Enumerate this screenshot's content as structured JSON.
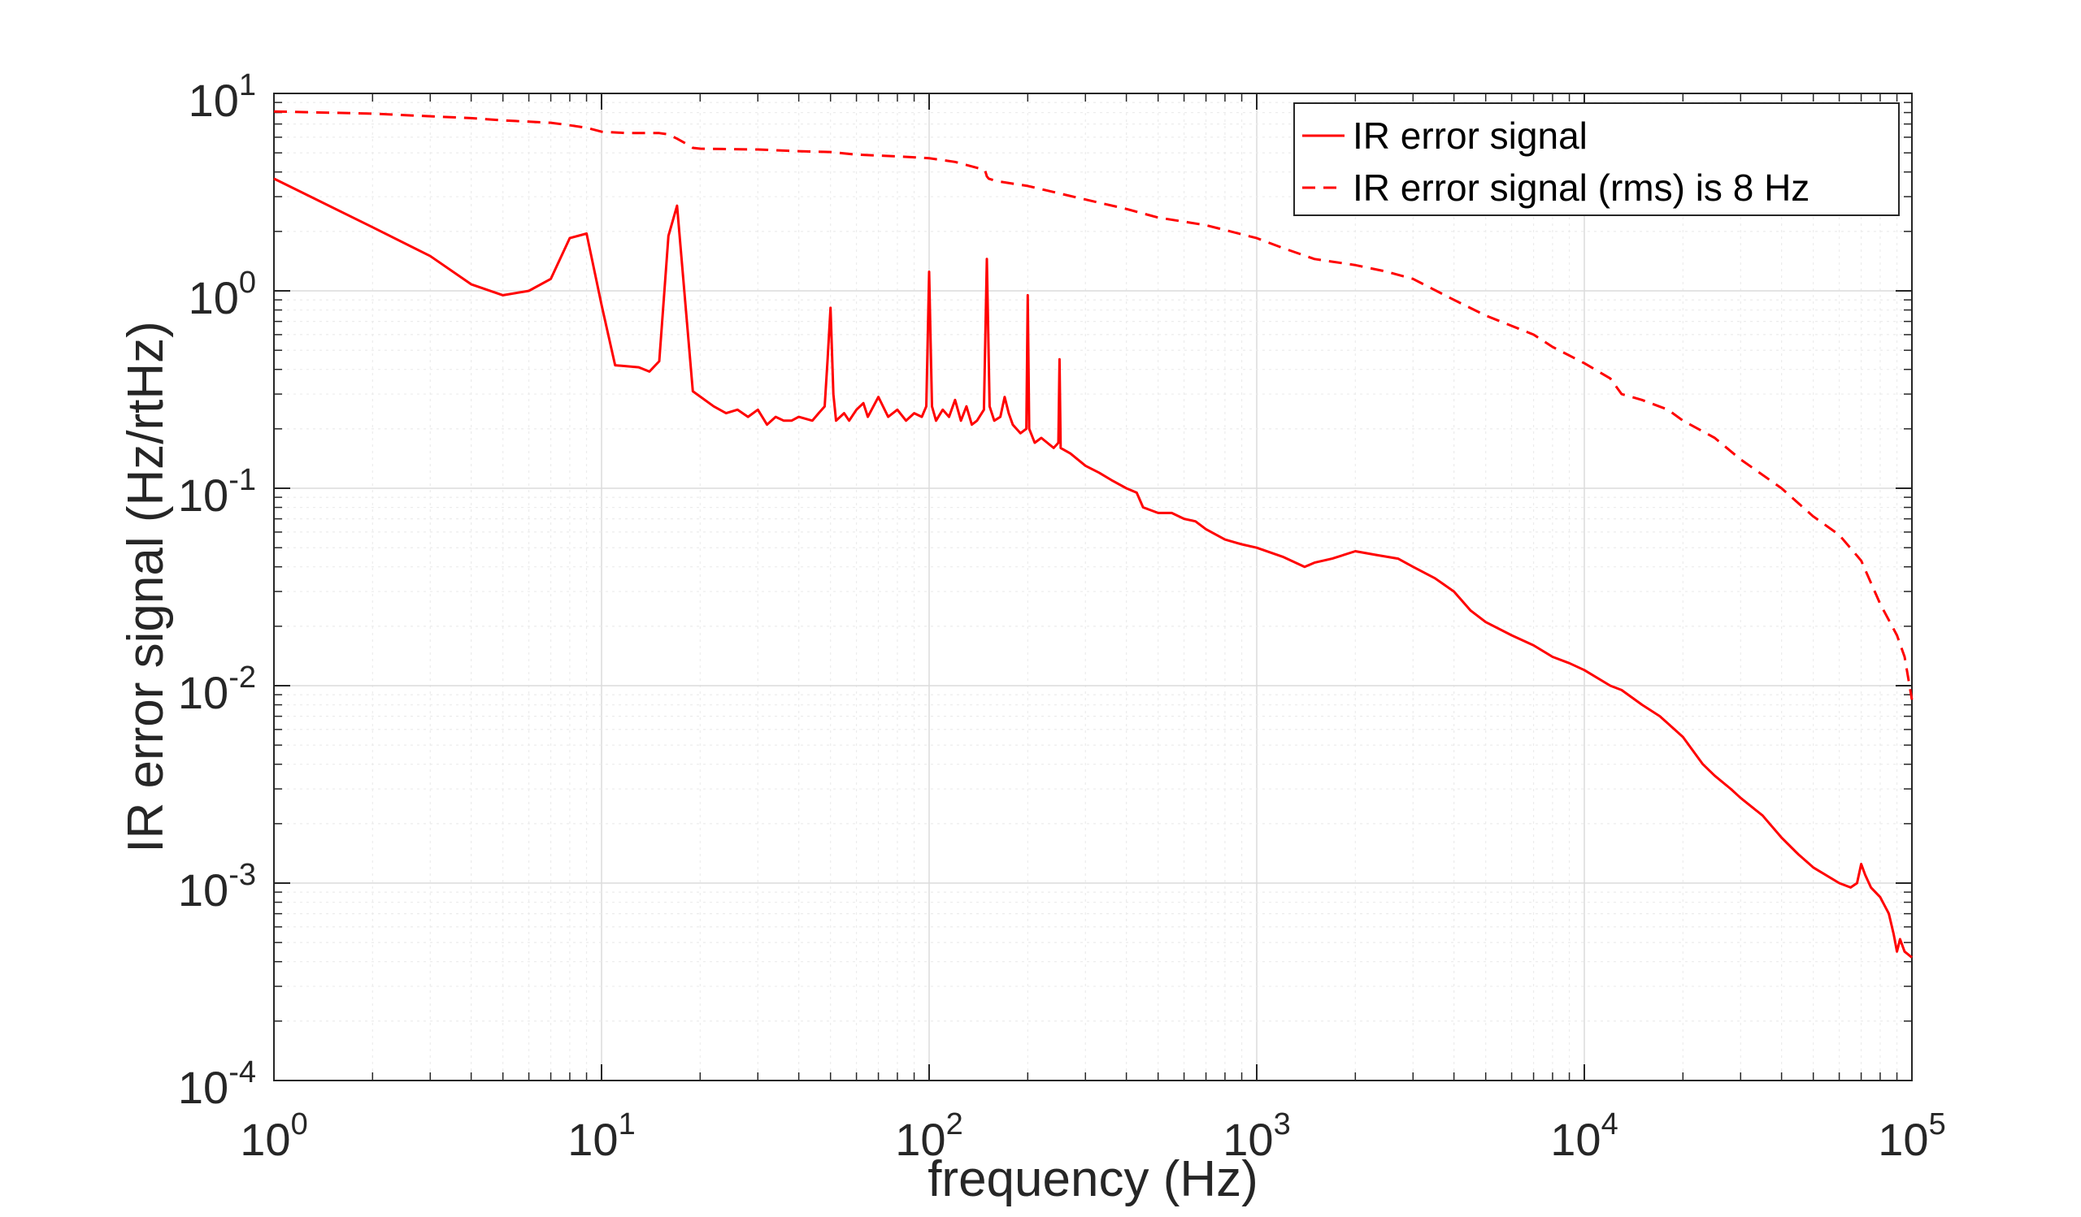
{
  "chart_data": {
    "type": "line",
    "title": "",
    "xlabel": "frequency (Hz)",
    "ylabel": "IR error signal (Hz/rtHz)",
    "x_scale": "log",
    "y_scale": "log",
    "xlim": [
      1,
      100000
    ],
    "ylim": [
      0.0001,
      10
    ],
    "grid": true,
    "legend_position": "top-right",
    "x_ticks": [
      {
        "value": 1,
        "base": "10",
        "exp": "0"
      },
      {
        "value": 10,
        "base": "10",
        "exp": "1"
      },
      {
        "value": 100,
        "base": "10",
        "exp": "2"
      },
      {
        "value": 1000,
        "base": "10",
        "exp": "3"
      },
      {
        "value": 10000,
        "base": "10",
        "exp": "4"
      },
      {
        "value": 100000,
        "base": "10",
        "exp": "5"
      }
    ],
    "y_ticks": [
      {
        "value": 0.0001,
        "base": "10",
        "exp": "-4"
      },
      {
        "value": 0.001,
        "base": "10",
        "exp": "-3"
      },
      {
        "value": 0.01,
        "base": "10",
        "exp": "-2"
      },
      {
        "value": 0.1,
        "base": "10",
        "exp": "-1"
      },
      {
        "value": 1,
        "base": "10",
        "exp": "0"
      },
      {
        "value": 10,
        "base": "10",
        "exp": "1"
      }
    ],
    "series": [
      {
        "name": "IR error signal",
        "style": "solid",
        "color": "#ff0000",
        "x": [
          1,
          2,
          3,
          4,
          5,
          6,
          7,
          8,
          9,
          10,
          11,
          13,
          14,
          15,
          16,
          17,
          19,
          22,
          24,
          26,
          28,
          30,
          32,
          34,
          36,
          38,
          40,
          44,
          46,
          48,
          49,
          50,
          51,
          52,
          55,
          57,
          60,
          63,
          65,
          70,
          75,
          80,
          85,
          90,
          95,
          98,
          100,
          102,
          105,
          110,
          115,
          120,
          125,
          130,
          135,
          140,
          147,
          150,
          153,
          158,
          165,
          170,
          175,
          180,
          190,
          198,
          200,
          202,
          210,
          220,
          240,
          248,
          250,
          252,
          270,
          300,
          330,
          360,
          400,
          430,
          450,
          500,
          550,
          600,
          650,
          700,
          800,
          900,
          1000,
          1200,
          1400,
          1500,
          1700,
          2000,
          2300,
          2700,
          3000,
          3500,
          4000,
          4500,
          5000,
          6000,
          7000,
          8000,
          9000,
          10000,
          12000,
          13000,
          15000,
          17000,
          20000,
          23000,
          25000,
          28000,
          30000,
          35000,
          40000,
          45000,
          50000,
          60000,
          65000,
          68000,
          70000,
          72000,
          75000,
          80000,
          85000,
          88000,
          90000,
          92000,
          95000,
          100000
        ],
        "y": [
          3.7,
          2.1,
          1.5,
          1.08,
          0.95,
          1.0,
          1.15,
          1.85,
          1.95,
          0.85,
          0.42,
          0.41,
          0.39,
          0.44,
          1.9,
          2.7,
          0.31,
          0.26,
          0.24,
          0.25,
          0.23,
          0.25,
          0.21,
          0.23,
          0.22,
          0.22,
          0.23,
          0.22,
          0.24,
          0.26,
          0.45,
          0.82,
          0.3,
          0.22,
          0.24,
          0.22,
          0.25,
          0.27,
          0.23,
          0.29,
          0.23,
          0.25,
          0.22,
          0.24,
          0.23,
          0.26,
          1.25,
          0.26,
          0.22,
          0.25,
          0.23,
          0.28,
          0.22,
          0.26,
          0.21,
          0.22,
          0.25,
          1.45,
          0.26,
          0.22,
          0.23,
          0.29,
          0.24,
          0.21,
          0.19,
          0.2,
          0.95,
          0.2,
          0.17,
          0.18,
          0.16,
          0.17,
          0.45,
          0.16,
          0.15,
          0.13,
          0.12,
          0.11,
          0.1,
          0.095,
          0.08,
          0.075,
          0.075,
          0.07,
          0.068,
          0.062,
          0.055,
          0.052,
          0.05,
          0.045,
          0.04,
          0.042,
          0.044,
          0.048,
          0.046,
          0.044,
          0.04,
          0.035,
          0.03,
          0.024,
          0.021,
          0.018,
          0.016,
          0.014,
          0.013,
          0.012,
          0.01,
          0.0095,
          0.008,
          0.007,
          0.0055,
          0.004,
          0.0035,
          0.003,
          0.0027,
          0.0022,
          0.0017,
          0.0014,
          0.0012,
          0.001,
          0.00095,
          0.001,
          0.00125,
          0.0011,
          0.00095,
          0.00085,
          0.0007,
          0.00055,
          0.00045,
          0.00052,
          0.00045,
          0.00042
        ]
      },
      {
        "name": "IR error signal (rms) is 8 Hz",
        "style": "dashed",
        "color": "#ff0000",
        "x": [
          1,
          2,
          4,
          5,
          7,
          8,
          9,
          10,
          12,
          15,
          16,
          17,
          18,
          19,
          20,
          30,
          40,
          50,
          60,
          80,
          100,
          120,
          140,
          148,
          150,
          152,
          160,
          200,
          300,
          400,
          500,
          700,
          1000,
          1200,
          1500,
          2000,
          2500,
          3000,
          4000,
          5000,
          7000,
          8000,
          10000,
          12000,
          13000,
          15000,
          18000,
          20000,
          25000,
          30000,
          40000,
          50000,
          60000,
          70000,
          80000,
          90000,
          95000,
          100000
        ],
        "y": [
          8.1,
          7.9,
          7.5,
          7.3,
          7.1,
          6.9,
          6.7,
          6.4,
          6.3,
          6.3,
          6.2,
          5.9,
          5.6,
          5.3,
          5.25,
          5.2,
          5.1,
          5.05,
          4.9,
          4.8,
          4.7,
          4.5,
          4.2,
          4.1,
          3.8,
          3.7,
          3.6,
          3.4,
          2.9,
          2.6,
          2.35,
          2.15,
          1.85,
          1.65,
          1.45,
          1.35,
          1.25,
          1.15,
          0.9,
          0.75,
          0.6,
          0.52,
          0.43,
          0.36,
          0.3,
          0.28,
          0.25,
          0.22,
          0.18,
          0.14,
          0.1,
          0.072,
          0.058,
          0.043,
          0.026,
          0.018,
          0.014,
          0.0085
        ]
      }
    ]
  }
}
